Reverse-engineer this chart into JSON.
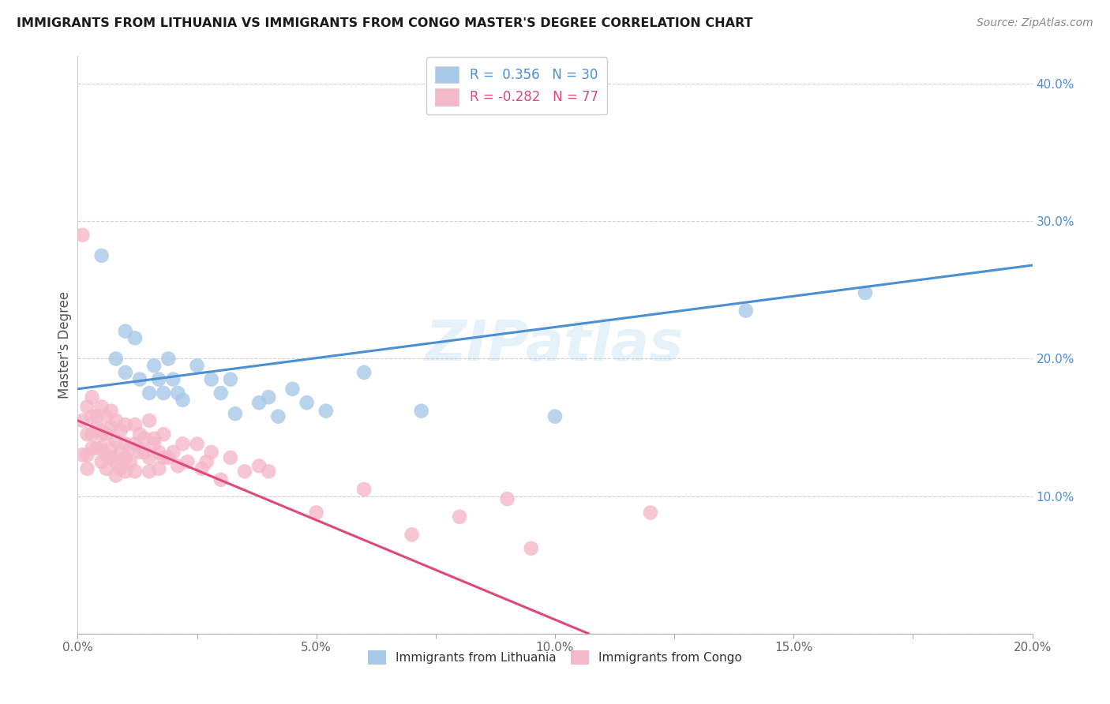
{
  "title": "IMMIGRANTS FROM LITHUANIA VS IMMIGRANTS FROM CONGO MASTER'S DEGREE CORRELATION CHART",
  "source_text": "Source: ZipAtlas.com",
  "ylabel": "Master's Degree",
  "xlim": [
    0.0,
    0.2
  ],
  "ylim": [
    0.0,
    0.42
  ],
  "xticks": [
    0.0,
    0.025,
    0.05,
    0.075,
    0.1,
    0.125,
    0.15,
    0.175,
    0.2
  ],
  "xtick_labels": [
    "0.0%",
    "",
    "5.0%",
    "",
    "10.0%",
    "",
    "15.0%",
    "",
    "20.0%"
  ],
  "yticks": [
    0.0,
    0.1,
    0.2,
    0.3,
    0.4
  ],
  "ytick_labels_right": [
    "",
    "10.0%",
    "20.0%",
    "30.0%",
    "40.0%"
  ],
  "color_blue": "#a8c8e8",
  "color_pink": "#f5b8c8",
  "trendline_blue": "#4a8fd4",
  "trendline_pink": "#e04878",
  "watermark": "ZIPatlas",
  "background_color": "#ffffff",
  "grid_color": "#d0d0d0",
  "lithuania_x": [
    0.005,
    0.008,
    0.01,
    0.01,
    0.012,
    0.013,
    0.015,
    0.016,
    0.017,
    0.018,
    0.019,
    0.02,
    0.021,
    0.022,
    0.025,
    0.028,
    0.03,
    0.032,
    0.033,
    0.038,
    0.04,
    0.042,
    0.045,
    0.048,
    0.052,
    0.06,
    0.072,
    0.1,
    0.14,
    0.165
  ],
  "lithuania_y": [
    0.275,
    0.2,
    0.22,
    0.19,
    0.215,
    0.185,
    0.175,
    0.195,
    0.185,
    0.175,
    0.2,
    0.185,
    0.175,
    0.17,
    0.195,
    0.185,
    0.175,
    0.185,
    0.16,
    0.168,
    0.172,
    0.158,
    0.178,
    0.168,
    0.162,
    0.19,
    0.162,
    0.158,
    0.235,
    0.248
  ],
  "congo_x": [
    0.001,
    0.001,
    0.001,
    0.002,
    0.002,
    0.002,
    0.002,
    0.003,
    0.003,
    0.003,
    0.003,
    0.004,
    0.004,
    0.004,
    0.005,
    0.005,
    0.005,
    0.005,
    0.005,
    0.006,
    0.006,
    0.006,
    0.006,
    0.007,
    0.007,
    0.007,
    0.007,
    0.008,
    0.008,
    0.008,
    0.008,
    0.009,
    0.009,
    0.009,
    0.01,
    0.01,
    0.01,
    0.01,
    0.011,
    0.011,
    0.012,
    0.012,
    0.012,
    0.013,
    0.013,
    0.014,
    0.014,
    0.015,
    0.015,
    0.015,
    0.016,
    0.016,
    0.017,
    0.017,
    0.018,
    0.018,
    0.019,
    0.02,
    0.021,
    0.022,
    0.023,
    0.025,
    0.026,
    0.027,
    0.028,
    0.03,
    0.032,
    0.035,
    0.038,
    0.04,
    0.05,
    0.06,
    0.07,
    0.08,
    0.09,
    0.095,
    0.12
  ],
  "congo_y": [
    0.29,
    0.155,
    0.13,
    0.165,
    0.145,
    0.13,
    0.12,
    0.145,
    0.158,
    0.172,
    0.135,
    0.15,
    0.135,
    0.158,
    0.148,
    0.135,
    0.145,
    0.165,
    0.125,
    0.13,
    0.145,
    0.158,
    0.12,
    0.135,
    0.15,
    0.162,
    0.128,
    0.14,
    0.155,
    0.125,
    0.115,
    0.132,
    0.148,
    0.12,
    0.138,
    0.152,
    0.128,
    0.118,
    0.135,
    0.125,
    0.138,
    0.152,
    0.118,
    0.132,
    0.145,
    0.132,
    0.142,
    0.128,
    0.155,
    0.118,
    0.138,
    0.142,
    0.132,
    0.12,
    0.145,
    0.128,
    0.128,
    0.132,
    0.122,
    0.138,
    0.125,
    0.138,
    0.12,
    0.125,
    0.132,
    0.112,
    0.128,
    0.118,
    0.122,
    0.118,
    0.088,
    0.105,
    0.072,
    0.085,
    0.098,
    0.062,
    0.088
  ],
  "trendline_blue_x0": 0.0,
  "trendline_blue_y0": 0.178,
  "trendline_blue_x1": 0.2,
  "trendline_blue_y1": 0.268,
  "trendline_pink_x0": 0.0,
  "trendline_pink_y0": 0.155,
  "trendline_pink_x1": 0.107,
  "trendline_pink_y1": 0.0
}
